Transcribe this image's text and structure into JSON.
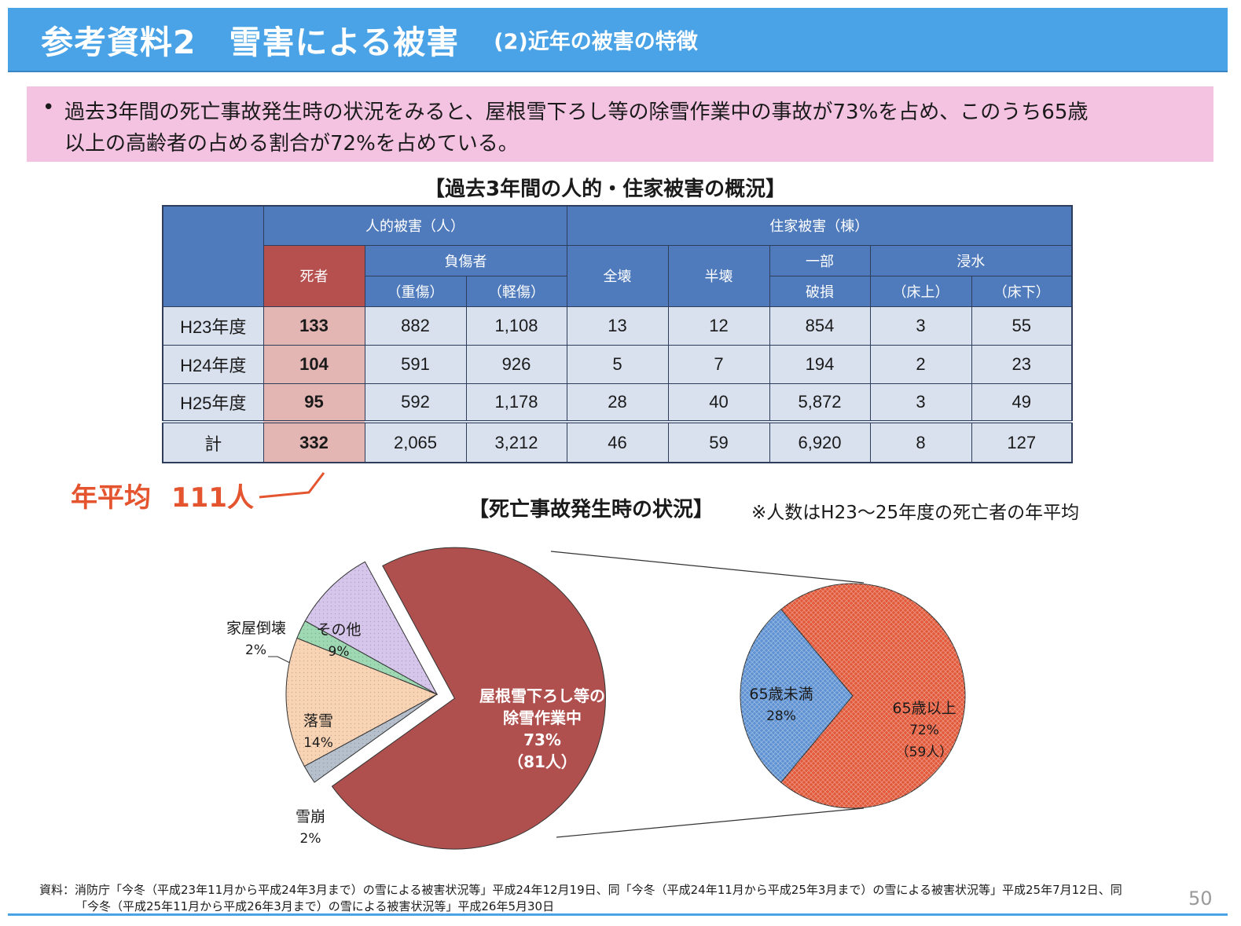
{
  "header": {
    "title": "参考資料2　雪害による被害",
    "subtitle": "(2)近年の被害の特徴"
  },
  "summary": {
    "bullet": "•",
    "line1": "過去3年間の死亡事故発生時の状況をみると、屋根雪下ろし等の除雪作業中の事故が73%を占め、このうち65歳",
    "line2": "以上の高齢者の占める割合が72%を占めている。"
  },
  "table_title": "【過去3年間の人的・住家被害の概況】",
  "table": {
    "group_human": "人的被害（人）",
    "group_house": "住家被害（棟）",
    "col_dead": "死者",
    "col_injured": "負傷者",
    "col_serious": "（重傷）",
    "col_minor": "（軽傷）",
    "col_total_collapse": "全壊",
    "col_half_collapse": "半壊",
    "col_partial_top": "一部",
    "col_partial_bottom": "破損",
    "col_flood": "浸水",
    "col_above_floor": "（床上）",
    "col_below_floor": "（床下）",
    "rows": [
      {
        "label": "H23年度",
        "values": [
          "133",
          "882",
          "1,108",
          "13",
          "12",
          "854",
          "3",
          "55"
        ]
      },
      {
        "label": "H24年度",
        "values": [
          "104",
          "591",
          "926",
          "5",
          "7",
          "194",
          "2",
          "23"
        ]
      },
      {
        "label": "H25年度",
        "values": [
          "95",
          "592",
          "1,178",
          "28",
          "40",
          "5,872",
          "3",
          "49"
        ]
      },
      {
        "label": "計",
        "values": [
          "332",
          "2,065",
          "3,212",
          "46",
          "59",
          "6,920",
          "8",
          "127"
        ]
      }
    ]
  },
  "average": {
    "label": "年平均",
    "value": "111人"
  },
  "pie_title": "【死亡事故発生時の状況】",
  "pie_note": "※人数はH23～25年度の死亡者の年平均",
  "colors": {
    "header": "#4aa3e6",
    "summary_bg": "#f4c3e2",
    "table_header": "#4f7bbd",
    "dead_header": "#b5504e",
    "dead_cell": "#e3b6b4",
    "row_bg": "#d9e1ef",
    "accent_red": "#e4542f"
  },
  "chart_data": [
    {
      "type": "pie",
      "title": "【死亡事故発生時の状況】",
      "slices": [
        {
          "name": "屋根雪下ろし等の除雪作業中",
          "percent": 73,
          "label_pct": "73%",
          "count_label": "（81人）",
          "color": "#b0504e",
          "exploded": true
        },
        {
          "name": "雪崩",
          "percent": 2,
          "label_pct": "2%",
          "color": "#b6c0cc"
        },
        {
          "name": "落雪",
          "percent": 14,
          "label_pct": "14%",
          "color": "#f8d4b5"
        },
        {
          "name": "家屋倒壊",
          "percent": 2,
          "label_pct": "2%",
          "color": "#9ed9b3"
        },
        {
          "name": "その他",
          "percent": 9,
          "label_pct": "9%",
          "color": "#d7c6ec"
        }
      ]
    },
    {
      "type": "pie",
      "title": "",
      "slices": [
        {
          "name": "65歳未満",
          "percent": 28,
          "label_pct": "28%",
          "color": "#5f92d2"
        },
        {
          "name": "65歳以上",
          "percent": 72,
          "label_pct": "72%",
          "count_label": "（59人）",
          "color": "#e2593a"
        }
      ]
    }
  ],
  "source": {
    "line1": "資料：消防庁「今冬（平成23年11月から平成24年3月まで）の雪による被害状況等」平成24年12月19日、同「今冬（平成24年11月から平成25年3月まで）の雪による被害状況等」平成25年7月12日、同",
    "line2": "「今冬（平成25年11月から平成26年3月まで）の雪による被害状況等」平成26年5月30日"
  },
  "page_number": "50"
}
